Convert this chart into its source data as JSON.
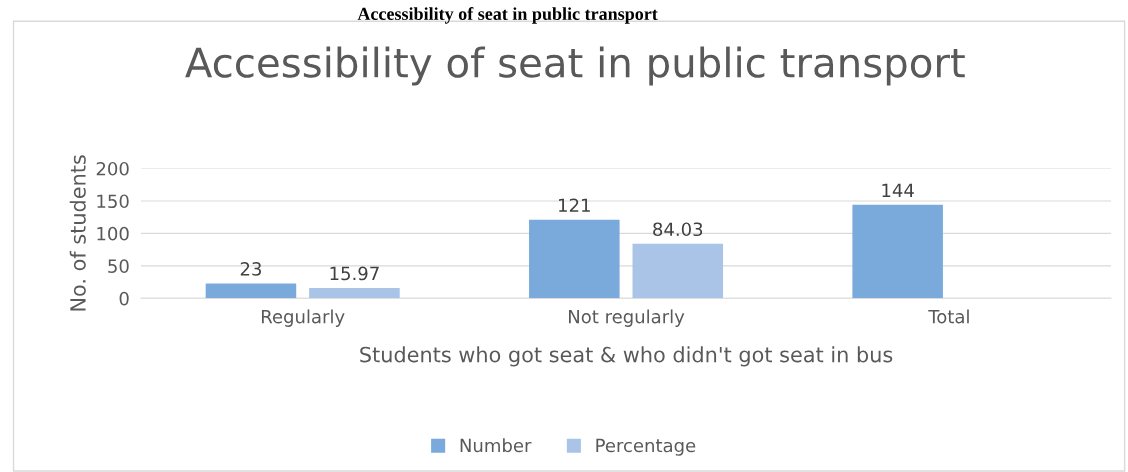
{
  "chart_data": {
    "type": "bar",
    "title": "Accessibility of seat in public transport",
    "annotations": [
      "Accessibility of seat in public transport"
    ],
    "xlabel": "Students who got seat & who didn't got seat in bus",
    "ylabel": "No. of students",
    "categories": [
      "Regularly",
      "Not regularly",
      "Total"
    ],
    "series": [
      {
        "name": "Number",
        "color": "#7aaadc",
        "values": [
          23,
          121,
          144
        ]
      },
      {
        "name": "Percentage",
        "color": "#a9c4e6",
        "values": [
          15.97,
          84.03,
          null
        ]
      }
    ],
    "ylim": [
      0,
      200
    ],
    "yticks": [
      0,
      50,
      100,
      150,
      200
    ],
    "grid": "y",
    "legend": "bottom",
    "data_labels": true
  }
}
